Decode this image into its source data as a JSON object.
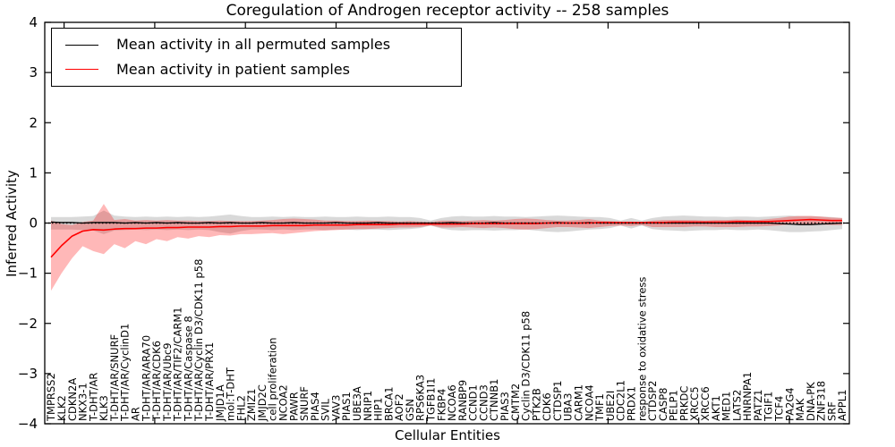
{
  "title": "Coregulation of Androgen receptor activity -- 258 samples",
  "axes": {
    "xlabel": "Cellular Entities",
    "ylabel": "Inferred Activity",
    "ylim": [
      -4,
      4
    ],
    "yticks": [
      4,
      3,
      2,
      1,
      0,
      -1,
      -2,
      -3,
      -4
    ],
    "ytick_labels": [
      "4",
      "3",
      "2",
      "1",
      "0",
      "−1",
      "−2",
      "−3",
      "−4"
    ]
  },
  "legend": {
    "items": [
      {
        "label": "Mean activity in all permuted samples",
        "color": "#000000"
      },
      {
        "label": "Mean activity in patient samples",
        "color": "#ff0000"
      }
    ]
  },
  "colors": {
    "permuted_line": "#000000",
    "patient_line": "#ff0000",
    "permuted_band": "#808080",
    "patient_band": "#ff0000",
    "spine": "#000000"
  },
  "chart_data": {
    "type": "line",
    "title": "Coregulation of Androgen receptor activity -- 258 samples",
    "xlabel": "Cellular Entities",
    "ylabel": "Inferred Activity",
    "ylim": [
      -4,
      4
    ],
    "grid": false,
    "legend_position": "upper left",
    "categories": [
      "TMPRSS2",
      "KLK2",
      "CDKN2A",
      "NKX3-1",
      "T-DHT/AR",
      "KLK3",
      "T-DHT/AR/SNURF",
      "T-DHT/AR/CyclinD1",
      "AR",
      "T-DHT/AR/ARA70",
      "T-DHT/AR/CDK6",
      "T-DHT/AR/Ubc9",
      "T-DHT/AR/TIF2/CARM1",
      "T-DHT/AR/Caspase 8",
      "T-DHT/AR/Cyclin D3/CDK11 p58",
      "T-DHT/AR/PRX1",
      "JMJD1A",
      "mol:T-DHT",
      "FHL2",
      "ZMIZ1",
      "JMJD2C",
      "cell proliferation",
      "NCOA2",
      "PAWR",
      "SNURF",
      "PIAS4",
      "SVIL",
      "VAV3",
      "PIAS1",
      "UBE3A",
      "NRIP1",
      "HIP1",
      "BRCA1",
      "AOF2",
      "GSN",
      "RPS6KA3",
      "TGFB1I1",
      "FKBP4",
      "NCOA6",
      "RANBP9",
      "CCND1",
      "CCND3",
      "CTNNB1",
      "PIAS3",
      "CMTM2",
      "Cyclin D3/CDK11 p58",
      "PTK2B",
      "CDK6",
      "CTDSP1",
      "UBA3",
      "CARM1",
      "NCOA4",
      "TMF1",
      "UBE2I",
      "CDC2L1",
      "PRDX1",
      "response to oxidative stress",
      "CTDSP2",
      "CASP8",
      "PELP1",
      "PRKDC",
      "XRCC5",
      "XRCC6",
      "AKT1",
      "MED1",
      "LATS2",
      "HNRNPA1",
      "PATZ1",
      "TGIF1",
      "TCF4",
      "PA2G4",
      "MAK",
      "DNA-PK",
      "ZNF318",
      "SRF",
      "APPL1"
    ],
    "series": [
      {
        "name": "Mean activity in all permuted samples",
        "color": "#000000",
        "style": "solid",
        "values": [
          0.02,
          0.01,
          0.01,
          0,
          0.01,
          0.01,
          0.01,
          0,
          0.01,
          0,
          0.01,
          0,
          0.01,
          0,
          0,
          0.01,
          0,
          0.01,
          0,
          0,
          0.01,
          0,
          0,
          0.01,
          0,
          0,
          0,
          0.01,
          0,
          0,
          0,
          0.01,
          0,
          0,
          0,
          0,
          0,
          0,
          0.01,
          0,
          0,
          0,
          0.01,
          0,
          0,
          0,
          0,
          0,
          0.01,
          0,
          0,
          0.01,
          0,
          0,
          0,
          0,
          0,
          0,
          0,
          0,
          0,
          0,
          0,
          0,
          0,
          0,
          0,
          0,
          0,
          -0.01,
          -0.02,
          -0.03,
          -0.03,
          -0.02,
          -0.01,
          0
        ]
      },
      {
        "name": "Mean activity in patient samples",
        "color": "#ff0000",
        "style": "solid",
        "values": [
          -0.68,
          -0.45,
          -0.26,
          -0.16,
          -0.13,
          -0.14,
          -0.12,
          -0.11,
          -0.11,
          -0.1,
          -0.1,
          -0.09,
          -0.09,
          -0.08,
          -0.08,
          -0.08,
          -0.07,
          -0.07,
          -0.06,
          -0.06,
          -0.06,
          -0.05,
          -0.05,
          -0.05,
          -0.05,
          -0.04,
          -0.04,
          -0.04,
          -0.04,
          -0.03,
          -0.03,
          -0.03,
          -0.03,
          -0.02,
          -0.02,
          -0.02,
          -0.02,
          -0.02,
          -0.02,
          -0.02,
          -0.01,
          -0.01,
          -0.01,
          -0.01,
          -0.01,
          -0.01,
          -0.01,
          0,
          0,
          0,
          0,
          0,
          0.01,
          0.01,
          0.01,
          0.01,
          0.01,
          0.01,
          0.01,
          0.02,
          0.02,
          0.02,
          0.02,
          0.02,
          0.02,
          0.03,
          0.03,
          0.03,
          0.03,
          0.04,
          0.05,
          0.06,
          0.07,
          0.06,
          0.05,
          0.05
        ]
      }
    ],
    "bands": [
      {
        "name": "permuted samples range",
        "color": "#808080",
        "opacity": 0.3,
        "hi": [
          0.12,
          0.12,
          0.12,
          0.13,
          0.14,
          0.25,
          0.15,
          0.13,
          0.12,
          0.13,
          0.12,
          0.13,
          0.12,
          0.13,
          0.12,
          0.13,
          0.15,
          0.17,
          0.14,
          0.12,
          0.12,
          0.13,
          0.12,
          0.13,
          0.12,
          0.12,
          0.13,
          0.12,
          0.12,
          0.13,
          0.12,
          0.12,
          0.13,
          0.12,
          0.12,
          0.1,
          0.05,
          0.1,
          0.13,
          0.14,
          0.13,
          0.13,
          0.14,
          0.13,
          0.13,
          0.12,
          0.13,
          0.14,
          0.15,
          0.14,
          0.13,
          0.12,
          0.12,
          0.1,
          0.05,
          0.1,
          0.05,
          0.1,
          0.13,
          0.14,
          0.15,
          0.14,
          0.13,
          0.13,
          0.12,
          0.13,
          0.13,
          0.12,
          0.13,
          0.14,
          0.15,
          0.14,
          0.14,
          0.13,
          0.12,
          0.1
        ],
        "lo": [
          -0.13,
          -0.13,
          -0.13,
          -0.14,
          -0.15,
          -0.22,
          -0.15,
          -0.14,
          -0.13,
          -0.14,
          -0.13,
          -0.14,
          -0.13,
          -0.14,
          -0.13,
          -0.14,
          -0.18,
          -0.21,
          -0.16,
          -0.13,
          -0.13,
          -0.14,
          -0.13,
          -0.14,
          -0.13,
          -0.13,
          -0.14,
          -0.13,
          -0.13,
          -0.14,
          -0.13,
          -0.13,
          -0.14,
          -0.13,
          -0.12,
          -0.1,
          -0.05,
          -0.11,
          -0.14,
          -0.15,
          -0.14,
          -0.14,
          -0.15,
          -0.14,
          -0.14,
          -0.13,
          -0.15,
          -0.17,
          -0.18,
          -0.17,
          -0.15,
          -0.13,
          -0.12,
          -0.1,
          -0.05,
          -0.11,
          -0.05,
          -0.12,
          -0.14,
          -0.15,
          -0.16,
          -0.15,
          -0.14,
          -0.14,
          -0.13,
          -0.14,
          -0.14,
          -0.13,
          -0.14,
          -0.16,
          -0.18,
          -0.18,
          -0.17,
          -0.16,
          -0.14,
          -0.12
        ]
      },
      {
        "name": "patient samples range",
        "color": "#ff0000",
        "opacity": 0.28,
        "hi": [
          0.05,
          -0.02,
          -0.04,
          0.02,
          0.05,
          0.38,
          0.06,
          0.08,
          0.05,
          0.06,
          0.05,
          0.06,
          0.05,
          0.05,
          0.04,
          0.04,
          0.05,
          0.04,
          0.04,
          0.04,
          0.05,
          0.06,
          0.08,
          0.09,
          0.08,
          0.07,
          0.05,
          0.05,
          0.04,
          0.04,
          0.05,
          0.04,
          0.04,
          0.03,
          0.04,
          0.03,
          0.02,
          0.05,
          0.05,
          0.04,
          0.05,
          0.06,
          0.05,
          0.06,
          0.08,
          0.09,
          0.08,
          0.06,
          0.05,
          0.05,
          0.06,
          0.08,
          0.05,
          0.04,
          0.03,
          0.03,
          0.02,
          0.05,
          0.06,
          0.06,
          0.06,
          0.06,
          0.05,
          0.06,
          0.06,
          0.07,
          0.06,
          0.06,
          0.08,
          0.1,
          0.13,
          0.14,
          0.14,
          0.13,
          0.11,
          0.1
        ],
        "lo": [
          -1.35,
          -1.0,
          -0.7,
          -0.46,
          -0.56,
          -0.62,
          -0.42,
          -0.5,
          -0.36,
          -0.42,
          -0.32,
          -0.36,
          -0.28,
          -0.31,
          -0.26,
          -0.28,
          -0.24,
          -0.25,
          -0.22,
          -0.22,
          -0.21,
          -0.2,
          -0.22,
          -0.2,
          -0.18,
          -0.16,
          -0.15,
          -0.14,
          -0.13,
          -0.12,
          -0.12,
          -0.11,
          -0.1,
          -0.09,
          -0.09,
          -0.08,
          -0.05,
          -0.09,
          -0.09,
          -0.08,
          -0.09,
          -0.1,
          -0.09,
          -0.1,
          -0.12,
          -0.13,
          -0.12,
          -0.1,
          -0.08,
          -0.08,
          -0.09,
          -0.1,
          -0.08,
          -0.06,
          -0.05,
          -0.06,
          -0.04,
          -0.08,
          -0.08,
          -0.08,
          -0.08,
          -0.07,
          -0.07,
          -0.08,
          -0.08,
          -0.08,
          -0.07,
          -0.07,
          -0.06,
          -0.05,
          -0.03,
          -0.02,
          -0.02,
          -0.03,
          -0.04,
          -0.04
        ]
      }
    ],
    "reference_line": {
      "y": 0,
      "style": "dotted",
      "color": "#000000"
    }
  }
}
